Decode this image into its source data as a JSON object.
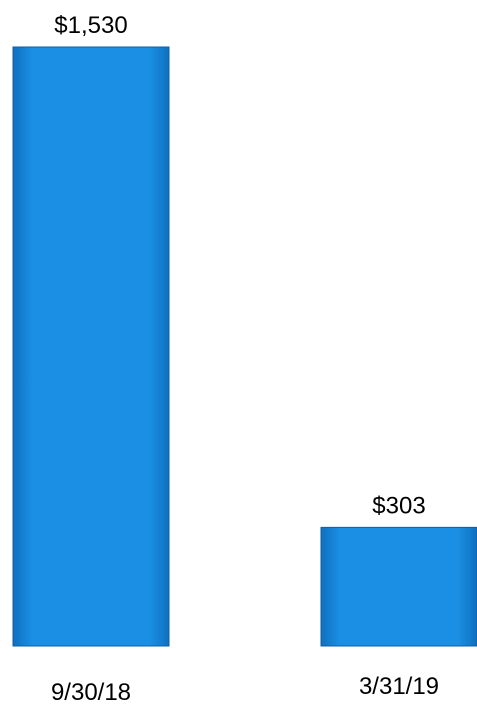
{
  "chart_data": {
    "type": "bar",
    "categories": [
      "9/30/18",
      "3/31/19"
    ],
    "values": [
      1530,
      303
    ],
    "data_labels": [
      "$1,530",
      "$303"
    ],
    "title": "",
    "xlabel": "",
    "ylabel": "",
    "ylim": [
      0,
      1530
    ],
    "grid": false,
    "legend": "none",
    "colors": {
      "bar_fill": "#1a8fe3",
      "bar_edge": "#0d5fa6"
    }
  }
}
